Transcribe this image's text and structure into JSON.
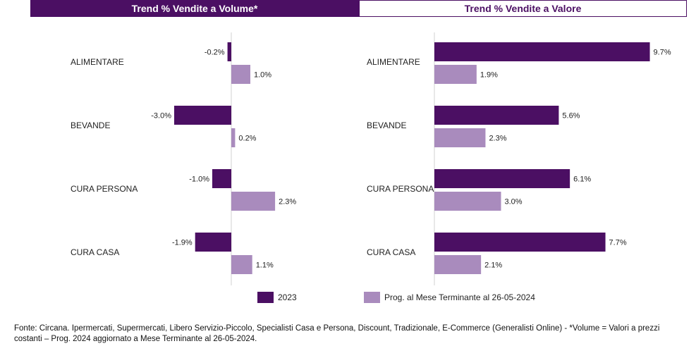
{
  "headers": {
    "left": "Trend % Vendite a Volume*",
    "right": "Trend % Vendite a Valore"
  },
  "colors": {
    "series_2023": "#4b0f63",
    "series_prog": "#a98bbd",
    "axis": "#d0d0d0"
  },
  "chart_data": [
    {
      "type": "bar",
      "orientation": "horizontal",
      "title": "Trend % Vendite a Volume*",
      "categories": [
        "ALIMENTARE",
        "BEVANDE",
        "CURA PERSONA",
        "CURA CASA"
      ],
      "series": [
        {
          "name": "2023",
          "values": [
            -0.2,
            -3.0,
            -1.0,
            -1.9
          ],
          "labels": [
            "-0.2%",
            "-3.0%",
            "-1.0%",
            "-1.9%"
          ]
        },
        {
          "name": "Prog. al Mese Terminante al 26-05-2024",
          "values": [
            1.0,
            0.2,
            2.3,
            1.1
          ],
          "labels": [
            "1.0%",
            "0.2%",
            "2.3%",
            "1.1%"
          ]
        }
      ],
      "unit": "%",
      "grid": false
    },
    {
      "type": "bar",
      "orientation": "horizontal",
      "title": "Trend % Vendite a Valore",
      "categories": [
        "ALIMENTARE",
        "BEVANDE",
        "CURA PERSONA",
        "CURA CASA"
      ],
      "series": [
        {
          "name": "2023",
          "values": [
            9.7,
            5.6,
            6.1,
            7.7
          ],
          "labels": [
            "9.7%",
            "5.6%",
            "6.1%",
            "7.7%"
          ]
        },
        {
          "name": "Prog. al Mese Terminante al 26-05-2024",
          "values": [
            1.9,
            2.3,
            3.0,
            2.1
          ],
          "labels": [
            "1.9%",
            "2.3%",
            "3.0%",
            "2.1%"
          ]
        }
      ],
      "unit": "%",
      "grid": false
    }
  ],
  "legend": [
    {
      "label": "2023"
    },
    {
      "label": "Prog. al Mese Terminante al 26-05-2024"
    }
  ],
  "footnote": "Fonte: Circana. Ipermercati, Supermercati, Libero Servizio-Piccolo, Specialisti Casa e Persona, Discount, Tradizionale, E-Commerce (Generalisti Online) - *Volume = Valori a prezzi costanti – Prog. 2024 aggiornato a Mese Terminante al 26-05-2024."
}
